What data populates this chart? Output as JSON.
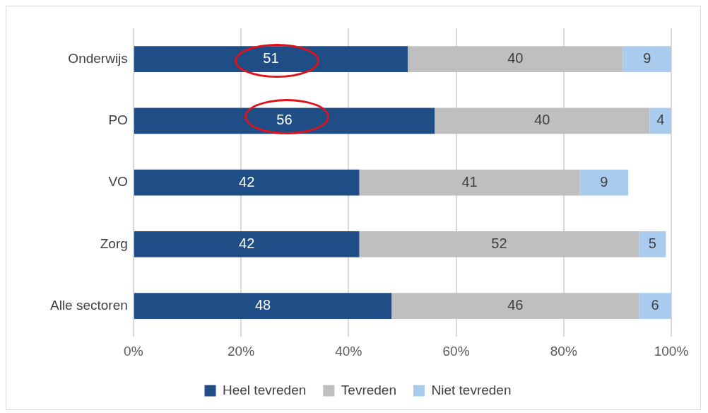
{
  "chart_data": {
    "type": "bar",
    "orientation": "horizontal",
    "stacked": true,
    "categories": [
      "Onderwijs",
      "PO",
      "VO",
      "Zorg",
      "Alle sectoren"
    ],
    "series": [
      {
        "name": "Heel tevreden",
        "color": "#1f4e87",
        "values": [
          51,
          56,
          42,
          42,
          48
        ],
        "value_labels": [
          "51",
          "56",
          "42",
          "42",
          "48"
        ]
      },
      {
        "name": "Tevreden",
        "color": "#bfbfbf",
        "values": [
          40,
          40,
          41,
          52,
          46
        ],
        "value_labels": [
          "40",
          "40",
          "41",
          "52",
          "46"
        ]
      },
      {
        "name": "Niet tevreden",
        "color": "#a9cbee",
        "values": [
          9,
          4,
          9,
          5,
          6
        ],
        "value_labels": [
          "9",
          "4",
          "9",
          "5",
          "6"
        ]
      }
    ],
    "xlim": [
      0,
      100
    ],
    "xticks": [
      {
        "value": 0,
        "label": "0%"
      },
      {
        "value": 20,
        "label": "20%"
      },
      {
        "value": 40,
        "label": "40%"
      },
      {
        "value": 60,
        "label": "60%"
      },
      {
        "value": 80,
        "label": "80%"
      },
      {
        "value": 100,
        "label": "100%"
      }
    ],
    "grid": "x",
    "legend": "bottom"
  }
}
